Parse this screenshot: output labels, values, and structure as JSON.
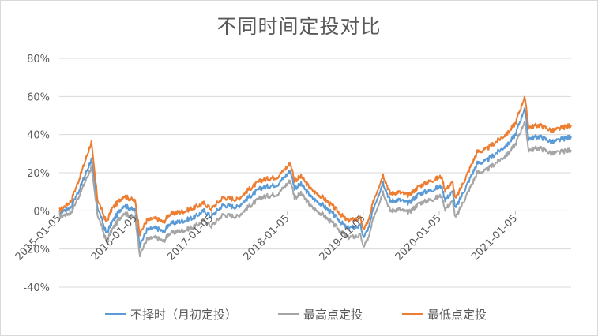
{
  "chart_data": {
    "type": "line",
    "title": "不同时间定投对比",
    "ylabel": "",
    "xlabel": "",
    "ylim": [
      -0.4,
      0.8
    ],
    "yticks": [
      -0.4,
      -0.2,
      0,
      0.2,
      0.4,
      0.6,
      0.8
    ],
    "ytick_labels": [
      "-40%",
      "-20%",
      "0%",
      "20%",
      "40%",
      "60%",
      "80%"
    ],
    "xticks": [
      "2015-01-05",
      "2016-01-05",
      "2017-01-05",
      "2018-01-05",
      "2019-01-05",
      "2020-01-05",
      "2021-01-05"
    ],
    "xlim": [
      "2015-01-05",
      "2021-09-30"
    ],
    "grid": "horizontal",
    "legend_position": "bottom",
    "series": [
      {
        "name": "不择时（月初定投）",
        "color": "#5b9bd5",
        "x": [
          "2015-01-05",
          "2015-03-01",
          "2015-04-15",
          "2015-06-08",
          "2015-07-08",
          "2015-08-20",
          "2015-09-15",
          "2015-11-10",
          "2016-01-05",
          "2016-01-28",
          "2016-03-01",
          "2016-04-15",
          "2016-05-20",
          "2016-06-15",
          "2016-07-20",
          "2016-09-01",
          "2016-10-20",
          "2016-11-30",
          "2017-01-05",
          "2017-03-01",
          "2017-05-10",
          "2017-07-01",
          "2017-09-01",
          "2017-11-20",
          "2018-01-20",
          "2018-02-09",
          "2018-03-12",
          "2018-05-01",
          "2018-06-25",
          "2018-08-15",
          "2018-10-18",
          "2018-12-25",
          "2019-01-03",
          "2019-02-01",
          "2019-02-25",
          "2019-04-10",
          "2019-05-15",
          "2019-06-20",
          "2019-08-10",
          "2019-10-01",
          "2019-12-01",
          "2020-01-15",
          "2020-02-03",
          "2020-03-10",
          "2020-03-23",
          "2020-05-01",
          "2020-07-06",
          "2020-08-15",
          "2020-10-01",
          "2020-12-01",
          "2021-01-05",
          "2021-02-18",
          "2021-03-10",
          "2021-05-01",
          "2021-07-01",
          "2021-09-30"
        ],
        "values": [
          -0.01,
          0.02,
          0.12,
          0.27,
          0.02,
          -0.12,
          -0.06,
          0.03,
          0.0,
          -0.18,
          -0.1,
          -0.09,
          -0.11,
          -0.07,
          -0.06,
          -0.05,
          -0.03,
          0.0,
          -0.03,
          0.03,
          0.02,
          0.07,
          0.12,
          0.14,
          0.21,
          0.12,
          0.14,
          0.07,
          0.03,
          -0.02,
          -0.09,
          -0.08,
          -0.14,
          -0.09,
          0.02,
          0.15,
          0.05,
          0.06,
          0.04,
          0.09,
          0.11,
          0.13,
          0.06,
          0.1,
          0.01,
          0.1,
          0.25,
          0.26,
          0.3,
          0.35,
          0.4,
          0.54,
          0.38,
          0.39,
          0.36,
          0.39
        ]
      },
      {
        "name": "最高点定投",
        "color": "#a5a5a5",
        "x": [
          "2015-01-05",
          "2015-03-01",
          "2015-04-15",
          "2015-06-08",
          "2015-07-08",
          "2015-08-20",
          "2015-09-15",
          "2015-11-10",
          "2016-01-05",
          "2016-01-28",
          "2016-03-01",
          "2016-04-15",
          "2016-05-20",
          "2016-06-15",
          "2016-07-20",
          "2016-09-01",
          "2016-10-20",
          "2016-11-30",
          "2017-01-05",
          "2017-03-01",
          "2017-05-10",
          "2017-07-01",
          "2017-09-01",
          "2017-11-20",
          "2018-01-20",
          "2018-02-09",
          "2018-03-12",
          "2018-05-01",
          "2018-06-25",
          "2018-08-15",
          "2018-10-18",
          "2018-12-25",
          "2019-01-03",
          "2019-02-01",
          "2019-02-25",
          "2019-04-10",
          "2019-05-15",
          "2019-06-20",
          "2019-08-10",
          "2019-10-01",
          "2019-12-01",
          "2020-01-15",
          "2020-02-03",
          "2020-03-10",
          "2020-03-23",
          "2020-05-01",
          "2020-07-06",
          "2020-08-15",
          "2020-10-01",
          "2020-12-01",
          "2021-01-05",
          "2021-02-18",
          "2021-03-10",
          "2021-05-01",
          "2021-07-01",
          "2021-09-30"
        ],
        "values": [
          -0.03,
          -0.01,
          0.09,
          0.23,
          -0.02,
          -0.16,
          -0.1,
          -0.01,
          -0.04,
          -0.23,
          -0.15,
          -0.14,
          -0.16,
          -0.12,
          -0.11,
          -0.1,
          -0.08,
          -0.05,
          -0.08,
          -0.02,
          -0.03,
          0.02,
          0.07,
          0.09,
          0.16,
          0.07,
          0.09,
          0.02,
          -0.02,
          -0.07,
          -0.14,
          -0.13,
          -0.19,
          -0.14,
          -0.03,
          0.1,
          0.0,
          0.01,
          -0.01,
          0.04,
          0.06,
          0.08,
          0.01,
          0.05,
          -0.04,
          0.05,
          0.2,
          0.21,
          0.25,
          0.3,
          0.35,
          0.47,
          0.32,
          0.33,
          0.3,
          0.32
        ]
      },
      {
        "name": "最低点定投",
        "color": "#ed7d31",
        "x": [
          "2015-01-05",
          "2015-03-01",
          "2015-04-15",
          "2015-06-08",
          "2015-07-08",
          "2015-08-20",
          "2015-09-15",
          "2015-11-10",
          "2016-01-05",
          "2016-01-28",
          "2016-03-01",
          "2016-04-15",
          "2016-05-20",
          "2016-06-15",
          "2016-07-20",
          "2016-09-01",
          "2016-10-20",
          "2016-11-30",
          "2017-01-05",
          "2017-03-01",
          "2017-05-10",
          "2017-07-01",
          "2017-09-01",
          "2017-11-20",
          "2018-01-20",
          "2018-02-09",
          "2018-03-12",
          "2018-05-01",
          "2018-06-25",
          "2018-08-15",
          "2018-10-18",
          "2018-12-25",
          "2019-01-03",
          "2019-02-01",
          "2019-02-25",
          "2019-04-10",
          "2019-05-15",
          "2019-06-20",
          "2019-08-10",
          "2019-10-01",
          "2019-12-01",
          "2020-01-15",
          "2020-02-03",
          "2020-03-10",
          "2020-03-23",
          "2020-05-01",
          "2020-07-06",
          "2020-08-15",
          "2020-10-01",
          "2020-12-01",
          "2021-01-05",
          "2021-02-18",
          "2021-03-10",
          "2021-05-01",
          "2021-07-01",
          "2021-09-30"
        ],
        "values": [
          0.0,
          0.05,
          0.18,
          0.36,
          0.06,
          -0.06,
          0.01,
          0.08,
          0.05,
          -0.12,
          -0.05,
          -0.04,
          -0.06,
          -0.02,
          -0.01,
          0.0,
          0.02,
          0.04,
          0.01,
          0.07,
          0.06,
          0.11,
          0.16,
          0.18,
          0.25,
          0.16,
          0.18,
          0.11,
          0.07,
          0.02,
          -0.05,
          -0.04,
          -0.1,
          -0.05,
          0.06,
          0.19,
          0.09,
          0.1,
          0.08,
          0.13,
          0.16,
          0.18,
          0.11,
          0.15,
          0.06,
          0.15,
          0.31,
          0.32,
          0.36,
          0.41,
          0.46,
          0.6,
          0.44,
          0.45,
          0.42,
          0.45
        ]
      }
    ]
  }
}
